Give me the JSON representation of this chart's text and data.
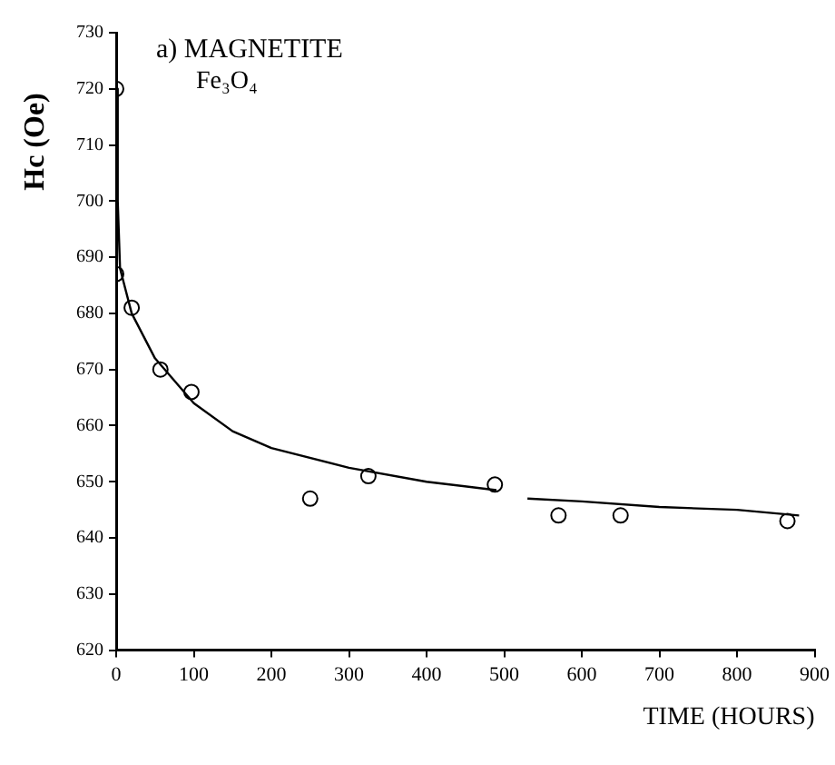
{
  "chart_data": {
    "type": "scatter",
    "title": "a) MAGNETITE",
    "subtitle": "Fe₃O₄",
    "xlabel": "TIME (HOURS)",
    "ylabel": "Hc (Oe)",
    "xlim": [
      0,
      900
    ],
    "xticks": [
      0,
      100,
      200,
      300,
      400,
      500,
      600,
      700,
      800,
      900
    ],
    "ylim": [
      620,
      730
    ],
    "yticks": [
      620,
      630,
      640,
      650,
      660,
      670,
      680,
      690,
      700,
      710,
      720,
      730
    ],
    "grid": false,
    "legend": false,
    "series": [
      {
        "color": "#000000",
        "marker": "circle",
        "x": [
          0,
          0,
          20,
          57,
          97,
          250,
          325,
          488,
          570,
          650,
          865
        ],
        "values": [
          720,
          687,
          681,
          670,
          666,
          647,
          651,
          649.5,
          644,
          644,
          643
        ]
      },
      {
        "type": "line",
        "color": "#000000",
        "marker": "none",
        "line_style": "solid",
        "x": [
          0,
          2,
          5,
          20,
          50,
          100,
          150,
          200,
          300,
          400,
          490,
          510,
          530,
          600,
          700,
          800,
          880
        ],
        "values": [
          720,
          700,
          688,
          680,
          672,
          664,
          659,
          656,
          652.5,
          650,
          648.5,
          null,
          647,
          646.5,
          645.5,
          645,
          644
        ]
      }
    ]
  }
}
